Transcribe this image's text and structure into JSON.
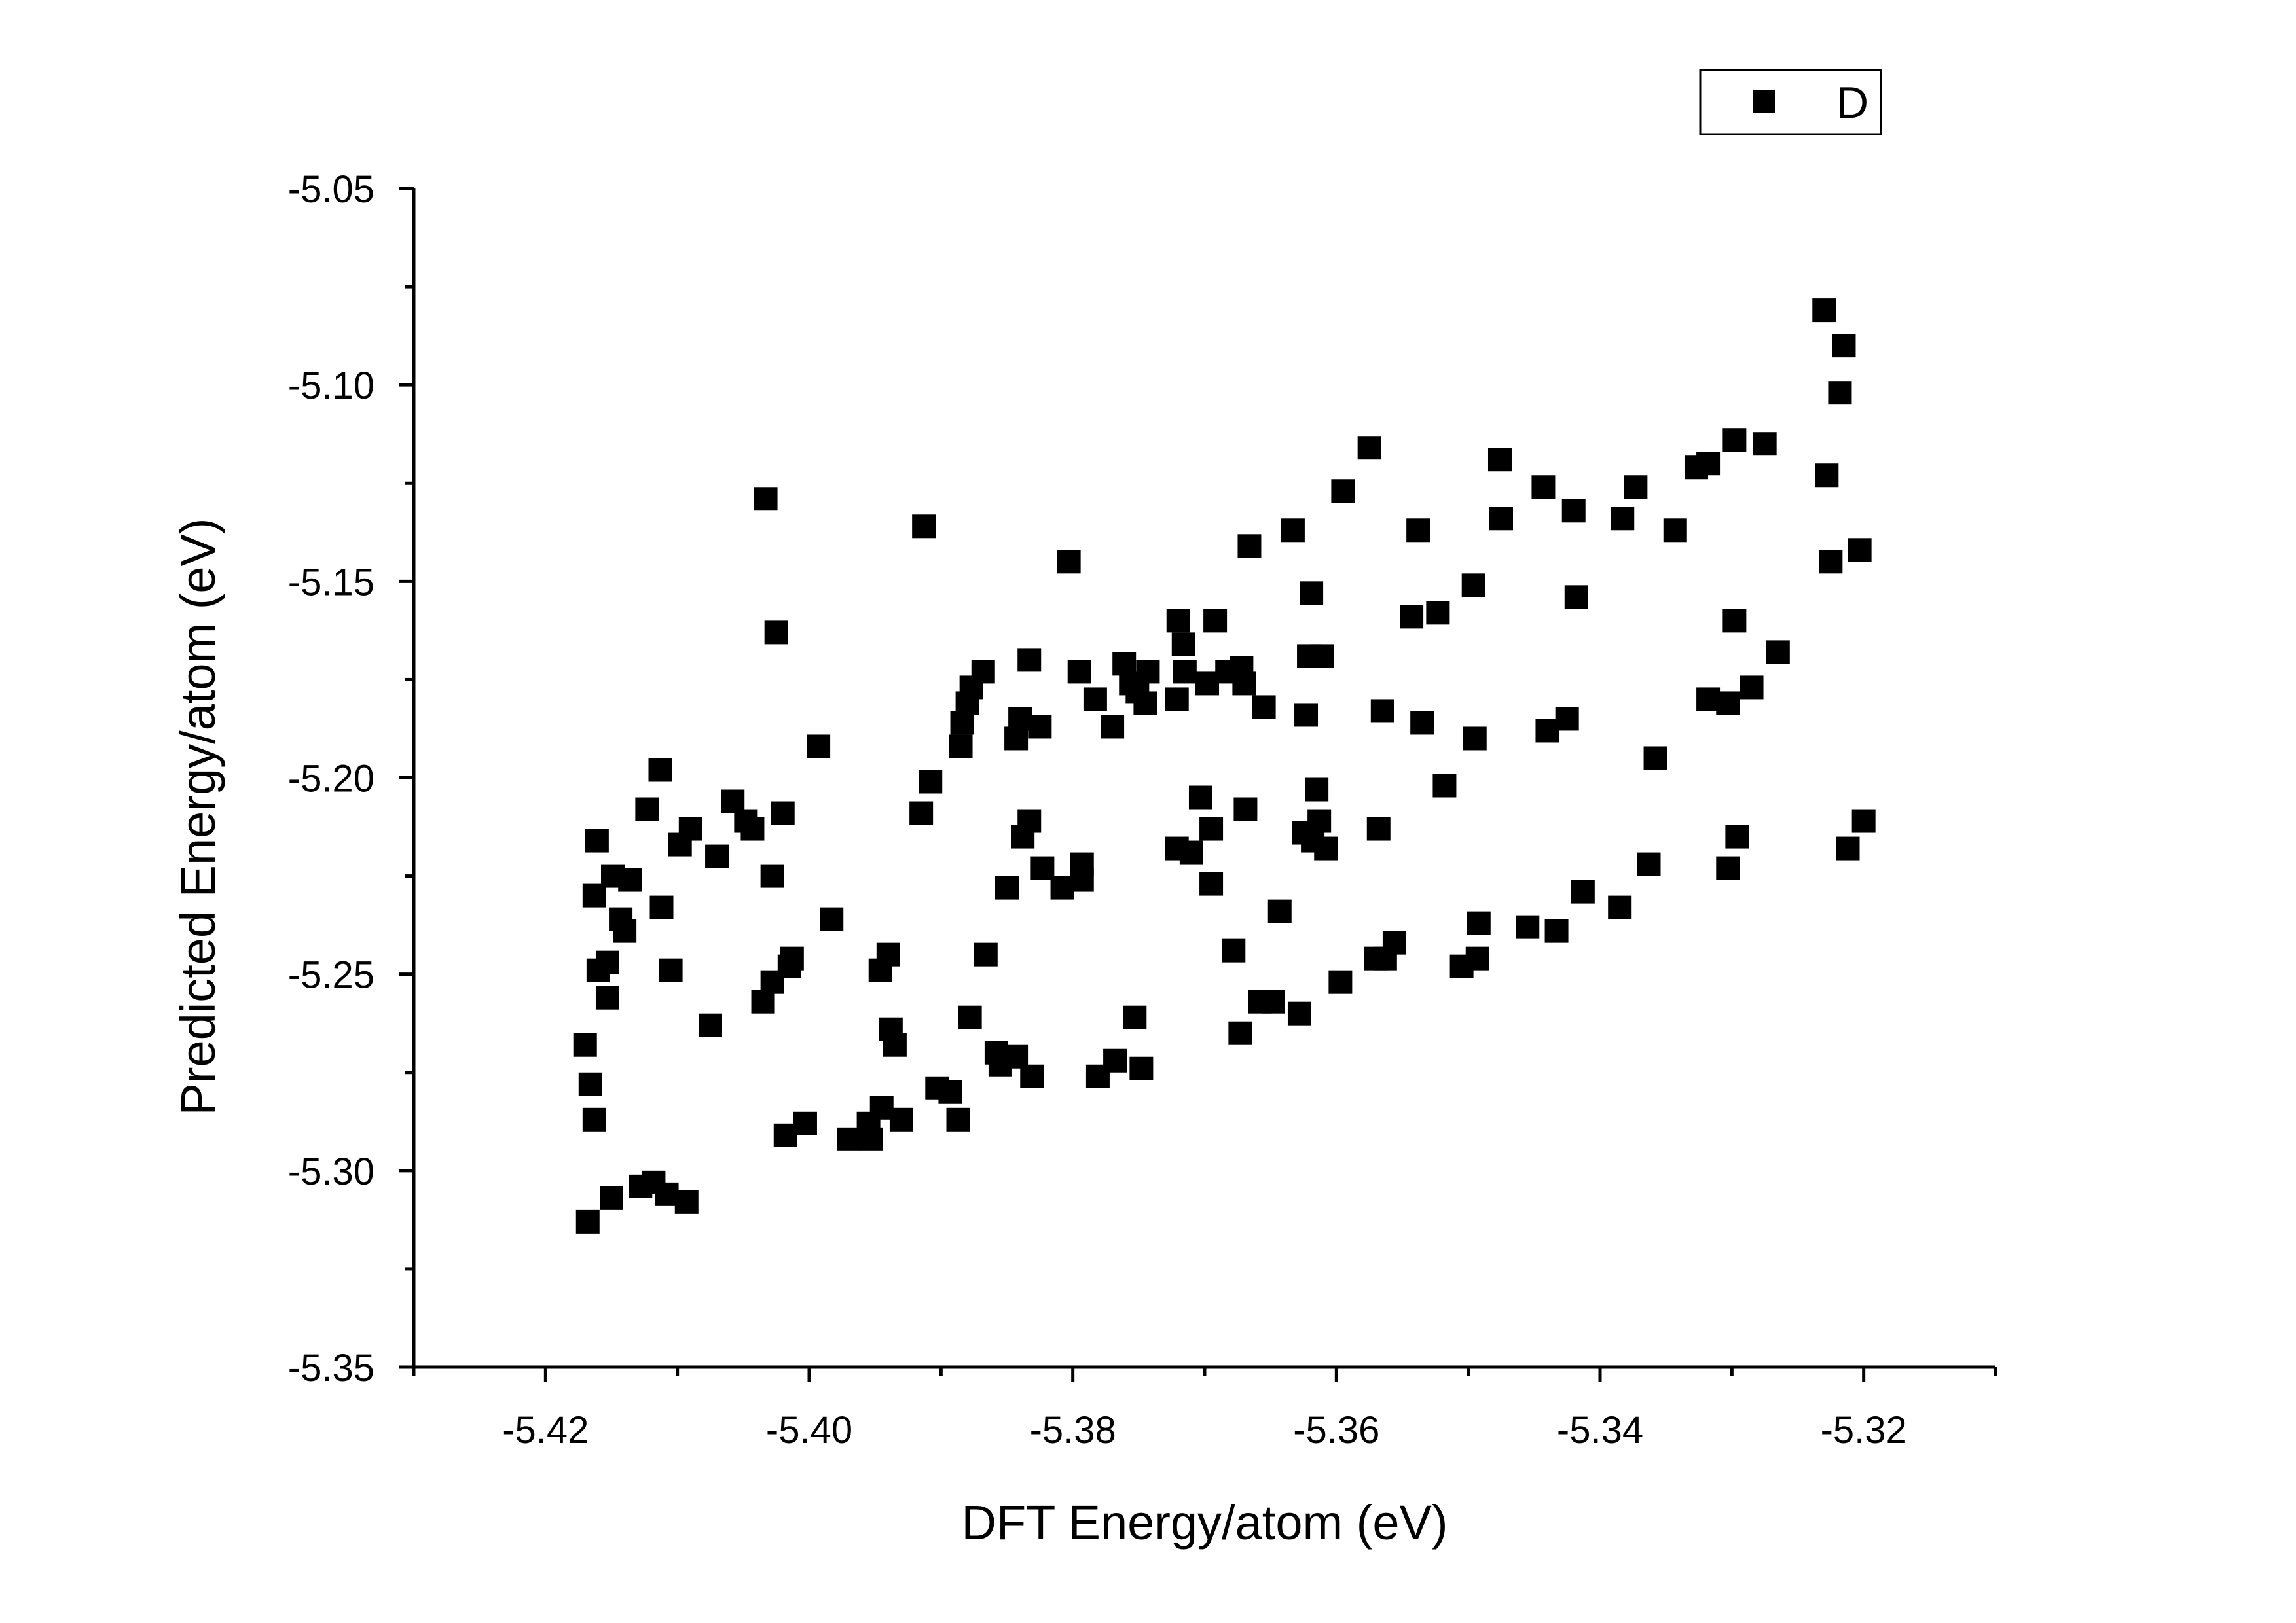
{
  "chart_data": {
    "type": "scatter",
    "xlabel": "DFT Energy/atom (eV)",
    "ylabel": "Predicted Energy/atom (eV)",
    "xlim": [
      -5.43,
      -5.31
    ],
    "ylim": [
      -5.35,
      -5.05
    ],
    "xticks": [
      -5.42,
      -5.4,
      -5.38,
      -5.36,
      -5.34,
      -5.32
    ],
    "xtick_labels": [
      "-5.42",
      "-5.40",
      "-5.38",
      "-5.36",
      "-5.34",
      "-5.32"
    ],
    "yticks": [
      -5.05,
      -5.1,
      -5.15,
      -5.2,
      -5.25,
      -5.3,
      -5.35
    ],
    "ytick_labels": [
      "-5.05",
      "-5.10",
      "-5.15",
      "-5.20",
      "-5.25",
      "-5.30",
      "-5.35"
    ],
    "grid": false,
    "legend_position": "top-right",
    "marker_color": "#000000",
    "series": [
      {
        "name": "D",
        "marker": "square",
        "points": [
          [
            -5.4168,
            -5.313
          ],
          [
            -5.415,
            -5.307
          ],
          [
            -5.4128,
            -5.304
          ],
          [
            -5.4118,
            -5.303
          ],
          [
            -5.4108,
            -5.306
          ],
          [
            -5.4093,
            -5.308
          ],
          [
            -5.417,
            -5.268
          ],
          [
            -5.4166,
            -5.278
          ],
          [
            -5.4163,
            -5.287
          ],
          [
            -5.416,
            -5.249
          ],
          [
            -5.4153,
            -5.256
          ],
          [
            -5.4153,
            -5.247
          ],
          [
            -5.4163,
            -5.23
          ],
          [
            -5.4161,
            -5.216
          ],
          [
            -5.4149,
            -5.225
          ],
          [
            -5.4143,
            -5.236
          ],
          [
            -5.414,
            -5.239
          ],
          [
            -5.4136,
            -5.226
          ],
          [
            -5.4123,
            -5.208
          ],
          [
            -5.4113,
            -5.198
          ],
          [
            -5.4112,
            -5.233
          ],
          [
            -5.4105,
            -5.249
          ],
          [
            -5.4098,
            -5.217
          ],
          [
            -5.409,
            -5.213
          ],
          [
            -5.4075,
            -5.263
          ],
          [
            -5.407,
            -5.22
          ],
          [
            -5.4058,
            -5.206
          ],
          [
            -5.4048,
            -5.211
          ],
          [
            -5.4043,
            -5.213
          ],
          [
            -5.4035,
            -5.257
          ],
          [
            -5.4028,
            -5.225
          ],
          [
            -5.4028,
            -5.252
          ],
          [
            -5.4025,
            -5.163
          ],
          [
            -5.4033,
            -5.129
          ],
          [
            -5.402,
            -5.209
          ],
          [
            -5.4018,
            -5.291
          ],
          [
            -5.4015,
            -5.248
          ],
          [
            -5.4013,
            -5.246
          ],
          [
            -5.4003,
            -5.288
          ],
          [
            -5.3993,
            -5.192
          ],
          [
            -5.3983,
            -5.236
          ],
          [
            -5.397,
            -5.292
          ],
          [
            -5.3953,
            -5.292
          ],
          [
            -5.3955,
            -5.288
          ],
          [
            -5.3945,
            -5.284
          ],
          [
            -5.3946,
            -5.249
          ],
          [
            -5.394,
            -5.245
          ],
          [
            -5.3938,
            -5.264
          ],
          [
            -5.3935,
            -5.268
          ],
          [
            -5.393,
            -5.287
          ],
          [
            -5.3915,
            -5.209
          ],
          [
            -5.3913,
            -5.136
          ],
          [
            -5.3908,
            -5.201
          ],
          [
            -5.3903,
            -5.279
          ],
          [
            -5.3893,
            -5.28
          ],
          [
            -5.3887,
            -5.287
          ],
          [
            -5.3885,
            -5.192
          ],
          [
            -5.3884,
            -5.186
          ],
          [
            -5.388,
            -5.181
          ],
          [
            -5.3877,
            -5.177
          ],
          [
            -5.3878,
            -5.261
          ],
          [
            -5.3868,
            -5.173
          ],
          [
            -5.3866,
            -5.245
          ],
          [
            -5.3858,
            -5.27
          ],
          [
            -5.3855,
            -5.273
          ],
          [
            -5.385,
            -5.228
          ],
          [
            -5.3843,
            -5.271
          ],
          [
            -5.3843,
            -5.19
          ],
          [
            -5.384,
            -5.185
          ],
          [
            -5.3838,
            -5.215
          ],
          [
            -5.3833,
            -5.211
          ],
          [
            -5.3833,
            -5.17
          ],
          [
            -5.3831,
            -5.276
          ],
          [
            -5.3825,
            -5.187
          ],
          [
            -5.3823,
            -5.223
          ],
          [
            -5.3808,
            -5.228
          ],
          [
            -5.3803,
            -5.145
          ],
          [
            -5.3793,
            -5.222
          ],
          [
            -5.3793,
            -5.226
          ],
          [
            -5.3795,
            -5.173
          ],
          [
            -5.3781,
            -5.276
          ],
          [
            -5.3783,
            -5.18
          ],
          [
            -5.377,
            -5.187
          ],
          [
            -5.3768,
            -5.272
          ],
          [
            -5.3761,
            -5.171
          ],
          [
            -5.3756,
            -5.176
          ],
          [
            -5.3753,
            -5.261
          ],
          [
            -5.3751,
            -5.178
          ],
          [
            -5.3748,
            -5.274
          ],
          [
            -5.3745,
            -5.181
          ],
          [
            -5.3743,
            -5.173
          ],
          [
            -5.372,
            -5.16
          ],
          [
            -5.3721,
            -5.18
          ],
          [
            -5.3721,
            -5.218
          ],
          [
            -5.3716,
            -5.166
          ],
          [
            -5.3715,
            -5.173
          ],
          [
            -5.371,
            -5.219
          ],
          [
            -5.3703,
            -5.205
          ],
          [
            -5.3698,
            -5.176
          ],
          [
            -5.3695,
            -5.213
          ],
          [
            -5.3695,
            -5.227
          ],
          [
            -5.3692,
            -5.16
          ],
          [
            -5.3683,
            -5.173
          ],
          [
            -5.3678,
            -5.244
          ],
          [
            -5.3673,
            -5.265
          ],
          [
            -5.3672,
            -5.172
          ],
          [
            -5.367,
            -5.176
          ],
          [
            -5.3669,
            -5.208
          ],
          [
            -5.3666,
            -5.141
          ],
          [
            -5.3658,
            -5.257
          ],
          [
            -5.3655,
            -5.182
          ],
          [
            -5.3648,
            -5.257
          ],
          [
            -5.3643,
            -5.234
          ],
          [
            -5.3633,
            -5.137
          ],
          [
            -5.3628,
            -5.26
          ],
          [
            -5.3625,
            -5.214
          ],
          [
            -5.3623,
            -5.184
          ],
          [
            -5.3621,
            -5.169
          ],
          [
            -5.3619,
            -5.153
          ],
          [
            -5.3618,
            -5.216
          ],
          [
            -5.3615,
            -5.203
          ],
          [
            -5.3613,
            -5.211
          ],
          [
            -5.3611,
            -5.169
          ],
          [
            -5.3608,
            -5.218
          ],
          [
            -5.3597,
            -5.252
          ],
          [
            -5.3595,
            -5.127
          ],
          [
            -5.3575,
            -5.116
          ],
          [
            -5.357,
            -5.246
          ],
          [
            -5.3568,
            -5.213
          ],
          [
            -5.3565,
            -5.183
          ],
          [
            -5.3563,
            -5.246
          ],
          [
            -5.3556,
            -5.242
          ],
          [
            -5.3543,
            -5.159
          ],
          [
            -5.3538,
            -5.137
          ],
          [
            -5.3535,
            -5.186
          ],
          [
            -5.3523,
            -5.158
          ],
          [
            -5.3518,
            -5.202
          ],
          [
            -5.3505,
            -5.248
          ],
          [
            -5.3496,
            -5.151
          ],
          [
            -5.3495,
            -5.19
          ],
          [
            -5.3493,
            -5.246
          ],
          [
            -5.3492,
            -5.237
          ],
          [
            -5.3476,
            -5.119
          ],
          [
            -5.3475,
            -5.134
          ],
          [
            -5.3455,
            -5.238
          ],
          [
            -5.3443,
            -5.126
          ],
          [
            -5.344,
            -5.188
          ],
          [
            -5.3433,
            -5.239
          ],
          [
            -5.3425,
            -5.185
          ],
          [
            -5.342,
            -5.132
          ],
          [
            -5.3418,
            -5.154
          ],
          [
            -5.3413,
            -5.229
          ],
          [
            -5.3385,
            -5.233
          ],
          [
            -5.3383,
            -5.134
          ],
          [
            -5.3373,
            -5.126
          ],
          [
            -5.3363,
            -5.222
          ],
          [
            -5.3358,
            -5.195
          ],
          [
            -5.3343,
            -5.137
          ],
          [
            -5.3327,
            -5.121
          ],
          [
            -5.3318,
            -5.12
          ],
          [
            -5.3318,
            -5.18
          ],
          [
            -5.3303,
            -5.181
          ],
          [
            -5.3303,
            -5.223
          ],
          [
            -5.3298,
            -5.16
          ],
          [
            -5.3298,
            -5.114
          ],
          [
            -5.3296,
            -5.215
          ],
          [
            -5.3285,
            -5.177
          ],
          [
            -5.3275,
            -5.115
          ],
          [
            -5.3265,
            -5.168
          ],
          [
            -5.323,
            -5.081
          ],
          [
            -5.3228,
            -5.123
          ],
          [
            -5.3225,
            -5.145
          ],
          [
            -5.3218,
            -5.102
          ],
          [
            -5.3215,
            -5.09
          ],
          [
            -5.3212,
            -5.218
          ],
          [
            -5.3203,
            -5.142
          ],
          [
            -5.32,
            -5.211
          ]
        ]
      }
    ]
  }
}
